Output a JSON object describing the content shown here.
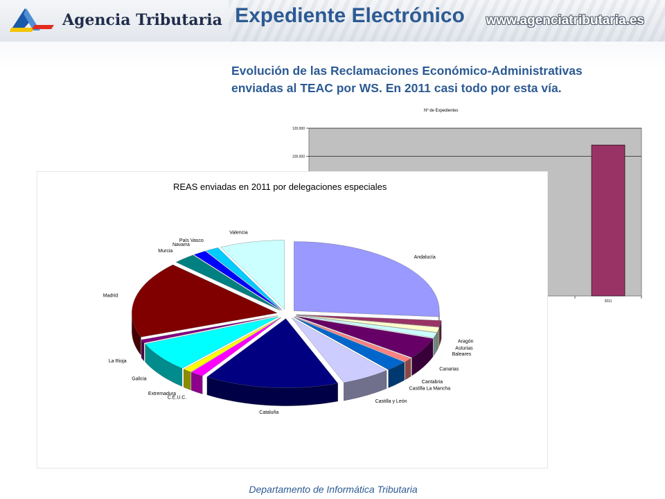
{
  "header": {
    "logo_text": "Agencia Tributaria",
    "title": "Expediente Electrónico",
    "url": "www.agenciatributaria.es"
  },
  "subtitle": {
    "line1": "Evolución de las Reclamaciones Económico-Administrativas",
    "line2": "enviadas al TEAC por WS. En 2011 casi todo por esta vía."
  },
  "footer": {
    "text": "Departamento de Informática Tributaria"
  },
  "colors": {
    "title_blue": "#2c5a93",
    "bar_fill": "#993366",
    "plot_bg": "#c0c0c0"
  },
  "chart_data": [
    {
      "type": "bar",
      "title": "Nº de Expedientes",
      "categories": [
        "2011"
      ],
      "values": [
        108000
      ],
      "ylim": [
        0,
        120000
      ],
      "yticks": [
        "100.000",
        "120.000"
      ],
      "grid": true,
      "partially_hidden": true
    },
    {
      "type": "pie",
      "title": "REAS enviadas en 2011 por delegaciones especiales",
      "labels": [
        "Andalucía",
        "Aragón",
        "Asturias",
        "Baleares",
        "Canarias",
        "Cantabria",
        "Castilla La Mancha",
        "Castilla y León",
        "Cataluña",
        "C.E.U.C.",
        "Extremadura",
        "Galicia",
        "La Rioja",
        "Madrid",
        "Murcia",
        "Navarra",
        "País Vasco",
        "Valencia"
      ],
      "values": [
        26.5,
        1.5,
        1.2,
        1.2,
        5.0,
        1.0,
        2.5,
        5.5,
        15.0,
        1.5,
        1.0,
        7.0,
        0.8,
        18.0,
        2.5,
        1.5,
        1.5,
        7.3
      ],
      "colors": [
        "#9999ff",
        "#993366",
        "#ffffcc",
        "#ccffff",
        "#660066",
        "#ff8080",
        "#0066cc",
        "#ccccff",
        "#000080",
        "#ff00ff",
        "#ffff00",
        "#00ffff",
        "#800080",
        "#800000",
        "#008080",
        "#0000ff",
        "#00ccff",
        "#ccffff"
      ],
      "display_labels": {
        "Cataluña": "Cataluña",
        "Castilla y León": "Castilla y León",
        "C.E.U.C.": "C.E.U.C.",
        "Extremadura": "Extremadura",
        "Galicia": "Galicia",
        "La Rioja": "La Rioja",
        "Madrid": "Madrid",
        "Murcia": "Murcia",
        "Navarra": "Navarra",
        "País Vasco": "País Vasco",
        "Valencia": "Valencia"
      },
      "exploded": true,
      "three_d": true
    }
  ]
}
